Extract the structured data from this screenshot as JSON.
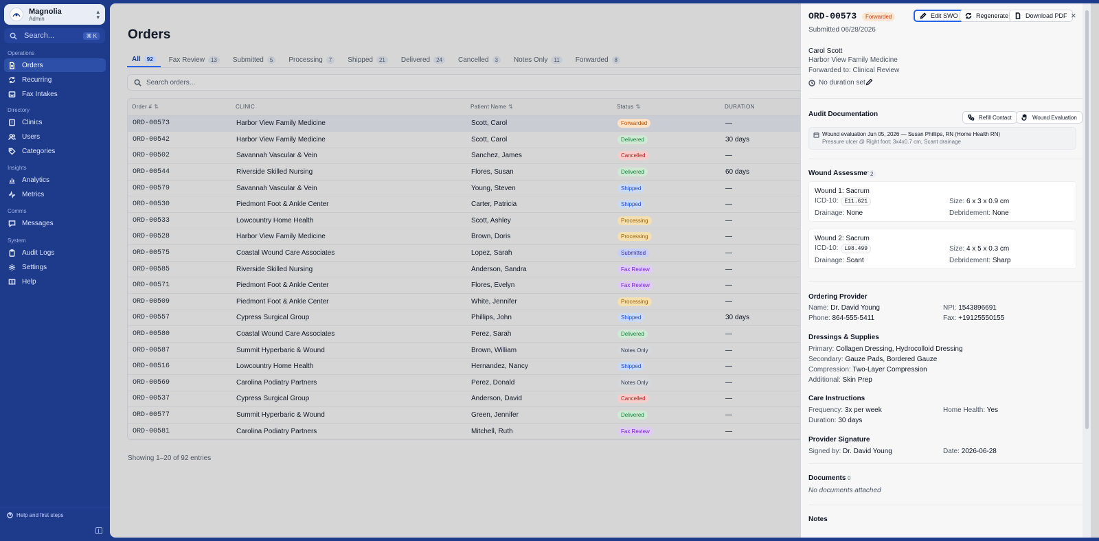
{
  "org": {
    "name": "Magnolia",
    "role": "Admin"
  },
  "search": {
    "placeholder": "Search...",
    "shortcut": "⌘ K"
  },
  "nav": {
    "operations_label": "Operations",
    "operations": [
      "Orders",
      "Recurring",
      "Fax Intakes"
    ],
    "directory_label": "Directory",
    "directory": [
      "Clinics",
      "Users",
      "Categories"
    ],
    "insights_label": "Insights",
    "insights": [
      "Analytics",
      "Metrics"
    ],
    "comms_label": "Comms",
    "comms": [
      "Messages"
    ],
    "system_label": "System",
    "system": [
      "Audit Logs",
      "Settings",
      "Help"
    ],
    "help_first_steps": "Help and first steps"
  },
  "page": {
    "title": "Orders",
    "search_placeholder": "Search orders...",
    "footer": "Showing 1–20 of 92 entries"
  },
  "tabs": [
    {
      "label": "All",
      "count": "92"
    },
    {
      "label": "Fax Review",
      "count": "13"
    },
    {
      "label": "Submitted",
      "count": "5"
    },
    {
      "label": "Processing",
      "count": "7"
    },
    {
      "label": "Shipped",
      "count": "21"
    },
    {
      "label": "Delivered",
      "count": "24"
    },
    {
      "label": "Cancelled",
      "count": "3"
    },
    {
      "label": "Notes Only",
      "count": "11"
    },
    {
      "label": "Forwarded",
      "count": "8"
    }
  ],
  "columns": [
    "Order #",
    "CLINIC",
    "Patient Name",
    "Status",
    "DURATION"
  ],
  "status_colors": {
    "Forwarded": {
      "bg": "#fde2c8",
      "fg": "#b45309"
    },
    "Delivered": {
      "bg": "#cfe9d4",
      "fg": "#15803d"
    },
    "Cancelled": {
      "bg": "#f5cdcd",
      "fg": "#b91c1c"
    },
    "Shipped": {
      "bg": "#c9daf2",
      "fg": "#1d4ed8"
    },
    "Processing": {
      "bg": "#f3dfb0",
      "fg": "#a16207"
    },
    "Submitted": {
      "bg": "#c9d0f5",
      "fg": "#3730a3"
    },
    "Fax Review": {
      "bg": "#ddcdf3",
      "fg": "#7e22ce"
    },
    "Notes Only": {
      "bg": "#d6d8dc",
      "fg": "#374151"
    }
  },
  "rows": [
    {
      "id": "ORD-00573",
      "clinic": "Harbor View Family Medicine",
      "patient": "Scott, Carol",
      "status": "Forwarded",
      "duration": "—"
    },
    {
      "id": "ORD-00542",
      "clinic": "Harbor View Family Medicine",
      "patient": "Scott, Carol",
      "status": "Delivered",
      "duration": "30 days"
    },
    {
      "id": "ORD-00502",
      "clinic": "Savannah Vascular & Vein",
      "patient": "Sanchez, James",
      "status": "Cancelled",
      "duration": "—"
    },
    {
      "id": "ORD-00544",
      "clinic": "Riverside Skilled Nursing",
      "patient": "Flores, Susan",
      "status": "Delivered",
      "duration": "60 days"
    },
    {
      "id": "ORD-00579",
      "clinic": "Savannah Vascular & Vein",
      "patient": "Young, Steven",
      "status": "Shipped",
      "duration": "—"
    },
    {
      "id": "ORD-00530",
      "clinic": "Piedmont Foot & Ankle Center",
      "patient": "Carter, Patricia",
      "status": "Shipped",
      "duration": "—"
    },
    {
      "id": "ORD-00533",
      "clinic": "Lowcountry Home Health",
      "patient": "Scott, Ashley",
      "status": "Processing",
      "duration": "—"
    },
    {
      "id": "ORD-00528",
      "clinic": "Harbor View Family Medicine",
      "patient": "Brown, Doris",
      "status": "Processing",
      "duration": "—"
    },
    {
      "id": "ORD-00575",
      "clinic": "Coastal Wound Care Associates",
      "patient": "Lopez, Sarah",
      "status": "Submitted",
      "duration": "—"
    },
    {
      "id": "ORD-00585",
      "clinic": "Riverside Skilled Nursing",
      "patient": "Anderson, Sandra",
      "status": "Fax Review",
      "duration": "—"
    },
    {
      "id": "ORD-00571",
      "clinic": "Piedmont Foot & Ankle Center",
      "patient": "Flores, Evelyn",
      "status": "Fax Review",
      "duration": "—"
    },
    {
      "id": "ORD-00509",
      "clinic": "Piedmont Foot & Ankle Center",
      "patient": "White, Jennifer",
      "status": "Processing",
      "duration": "—"
    },
    {
      "id": "ORD-00557",
      "clinic": "Cypress Surgical Group",
      "patient": "Phillips, John",
      "status": "Shipped",
      "duration": "30 days"
    },
    {
      "id": "ORD-00580",
      "clinic": "Coastal Wound Care Associates",
      "patient": "Perez, Sarah",
      "status": "Delivered",
      "duration": "—"
    },
    {
      "id": "ORD-00587",
      "clinic": "Summit Hyperbaric & Wound",
      "patient": "Brown, William",
      "status": "Notes Only",
      "duration": "—"
    },
    {
      "id": "ORD-00516",
      "clinic": "Lowcountry Home Health",
      "patient": "Hernandez, Nancy",
      "status": "Shipped",
      "duration": "—"
    },
    {
      "id": "ORD-00569",
      "clinic": "Carolina Podiatry Partners",
      "patient": "Perez, Donald",
      "status": "Notes Only",
      "duration": "—"
    },
    {
      "id": "ORD-00537",
      "clinic": "Cypress Surgical Group",
      "patient": "Anderson, David",
      "status": "Cancelled",
      "duration": "—"
    },
    {
      "id": "ORD-00577",
      "clinic": "Summit Hyperbaric & Wound",
      "patient": "Green, Jennifer",
      "status": "Delivered",
      "duration": "—"
    },
    {
      "id": "ORD-00581",
      "clinic": "Carolina Podiatry Partners",
      "patient": "Mitchell, Ruth",
      "status": "Fax Review",
      "duration": "—"
    }
  ],
  "detail": {
    "order_id": "ORD-00573",
    "status": "Forwarded",
    "buttons": {
      "edit": "Edit SWO",
      "regenerate": "Regenerate",
      "download": "Download PDF"
    },
    "submitted": "Submitted 06/28/2026",
    "patient": "Carol Scott",
    "clinic": "Harbor View Family Medicine",
    "forwarded": "Forwarded to: Clinical Review",
    "duration": "No duration set",
    "audit": {
      "title": "Audit Documentation",
      "refill": "Refill Contact",
      "wound_eval": "Wound Evaluation",
      "entry_title": "Wound evaluation Jun 05, 2026 — Susan Phillips, RN (Home Health RN)",
      "entry_detail": "Pressure ulcer @ Right foot: 3x4x0.7 cm, Scant drainage"
    },
    "wounds_title": "Wound Assessment",
    "wounds_count": "2",
    "wounds": [
      {
        "title": "Wound 1: Sacrum",
        "icd_label": "ICD-10:",
        "icd": "E11.621",
        "size_label": "Size:",
        "size": "6 x 3 x 0.9 cm",
        "drainage_label": "Drainage:",
        "drainage": "None",
        "debridement_label": "Debridement:",
        "debridement": "None"
      },
      {
        "title": "Wound 2: Sacrum",
        "icd_label": "ICD-10:",
        "icd": "L98.499",
        "size_label": "Size:",
        "size": "4 x 5 x 0.3 cm",
        "drainage_label": "Drainage:",
        "drainage": "Scant",
        "debridement_label": "Debridement:",
        "debridement": "Sharp"
      }
    ],
    "provider": {
      "title": "Ordering Provider",
      "name_label": "Name:",
      "name": "Dr. David Young",
      "npi_label": "NPI:",
      "npi": "1543896691",
      "phone_label": "Phone:",
      "phone": "864-555-5411",
      "fax_label": "Fax:",
      "fax": "+19125550155"
    },
    "dressings": {
      "title": "Dressings & Supplies",
      "primary_label": "Primary:",
      "primary": "Collagen Dressing, Hydrocolloid Dressing",
      "secondary_label": "Secondary:",
      "secondary": "Gauze Pads, Bordered Gauze",
      "compression_label": "Compression:",
      "compression": "Two-Layer Compression",
      "additional_label": "Additional:",
      "additional": "Skin Prep"
    },
    "care": {
      "title": "Care Instructions",
      "frequency_label": "Frequency:",
      "frequency": "3x per week",
      "home_health_label": "Home Health:",
      "home_health": "Yes",
      "duration_label": "Duration:",
      "duration": "30 days"
    },
    "signature": {
      "title": "Provider Signature",
      "signed_label": "Signed by:",
      "signed": "Dr. David Young",
      "date_label": "Date:",
      "date": "2026-06-28"
    },
    "documents": {
      "title": "Documents",
      "count": "0",
      "empty": "No documents attached"
    },
    "notes": {
      "title": "Notes"
    }
  }
}
